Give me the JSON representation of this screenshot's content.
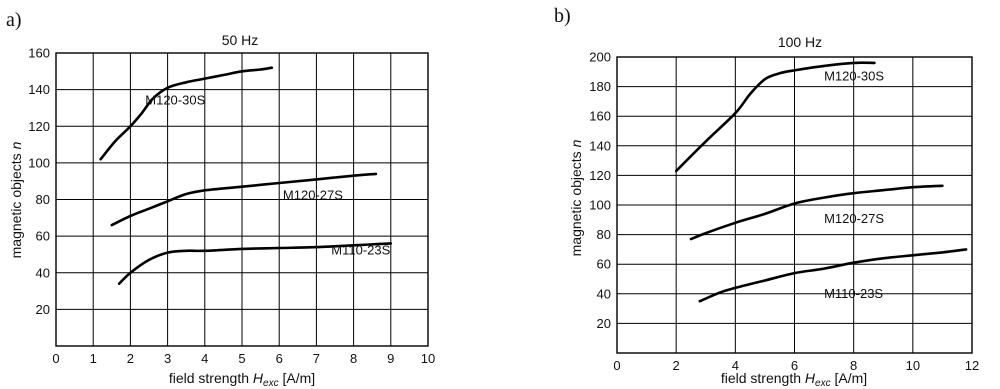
{
  "chart_data": [
    {
      "type": "line",
      "panel": "a)",
      "title": "50 Hz",
      "xlabel_main": "field strength ",
      "xlabel_var": "H",
      "xlabel_sub": "exc",
      "xlabel_unit": " [A/m]",
      "ylabel_main": "magnetic objects ",
      "ylabel_var": "n",
      "xlim": [
        0,
        10
      ],
      "ylim": [
        0,
        160
      ],
      "xticks": [
        0,
        1,
        2,
        3,
        4,
        5,
        6,
        7,
        8,
        9,
        10
      ],
      "yticks": [
        20,
        40,
        60,
        80,
        100,
        120,
        140,
        160
      ],
      "series": [
        {
          "name": "M120-30S",
          "label_at": [
            2.4,
            132
          ],
          "x": [
            1.2,
            1.6,
            2.0,
            2.3,
            2.6,
            3.0,
            3.5,
            4.0,
            4.5,
            5.0,
            5.5,
            5.8
          ],
          "y": [
            102,
            112,
            120,
            127,
            135,
            141,
            144,
            146,
            148,
            150,
            151,
            152
          ]
        },
        {
          "name": "M120-27S",
          "label_at": [
            6.1,
            80
          ],
          "x": [
            1.5,
            2.0,
            2.5,
            3.0,
            3.5,
            4.0,
            5.0,
            6.0,
            7.0,
            8.0,
            8.6
          ],
          "y": [
            66,
            71,
            75,
            79,
            83,
            85,
            87,
            89,
            91,
            93,
            94
          ]
        },
        {
          "name": "M110-23S",
          "label_at": [
            7.4,
            50
          ],
          "x": [
            1.7,
            2.0,
            2.5,
            3.0,
            3.5,
            4.0,
            5.0,
            6.0,
            7.0,
            8.0,
            9.0
          ],
          "y": [
            34,
            40,
            47,
            51,
            52,
            52,
            53,
            53.5,
            54,
            55,
            56
          ]
        }
      ]
    },
    {
      "type": "line",
      "panel": "b)",
      "title": "100 Hz",
      "xlabel_main": "field strength ",
      "xlabel_var": "H",
      "xlabel_sub": "exc",
      "xlabel_unit": " [A/m]",
      "ylabel_main": "magnetic objects ",
      "ylabel_var": "n",
      "xlim": [
        0,
        12
      ],
      "ylim": [
        0,
        200
      ],
      "xticks": [
        0,
        2,
        4,
        6,
        8,
        10,
        12
      ],
      "yticks": [
        20,
        40,
        60,
        80,
        100,
        120,
        140,
        160,
        180,
        200
      ],
      "series": [
        {
          "name": "M120-30S",
          "label_at": [
            7.0,
            184
          ],
          "x": [
            2.0,
            3.0,
            4.0,
            4.5,
            5.0,
            5.5,
            6.0,
            7.0,
            8.0,
            8.7
          ],
          "y": [
            123,
            143,
            162,
            175,
            185,
            189,
            191,
            194,
            196,
            196
          ]
        },
        {
          "name": "M120-27S",
          "label_at": [
            7.0,
            88
          ],
          "x": [
            2.5,
            3.0,
            4.0,
            5.0,
            6.0,
            7.0,
            8.0,
            9.0,
            10.0,
            11.0
          ],
          "y": [
            77,
            81,
            88,
            94,
            101,
            105,
            108,
            110,
            112,
            113
          ]
        },
        {
          "name": "M110-23S",
          "label_at": [
            7.0,
            37
          ],
          "x": [
            2.8,
            3.5,
            4.0,
            5.0,
            6.0,
            7.0,
            8.0,
            9.0,
            10.0,
            11.0,
            11.8
          ],
          "y": [
            35,
            41,
            44,
            49,
            54,
            57,
            61,
            64,
            66,
            68,
            70
          ]
        }
      ]
    }
  ]
}
